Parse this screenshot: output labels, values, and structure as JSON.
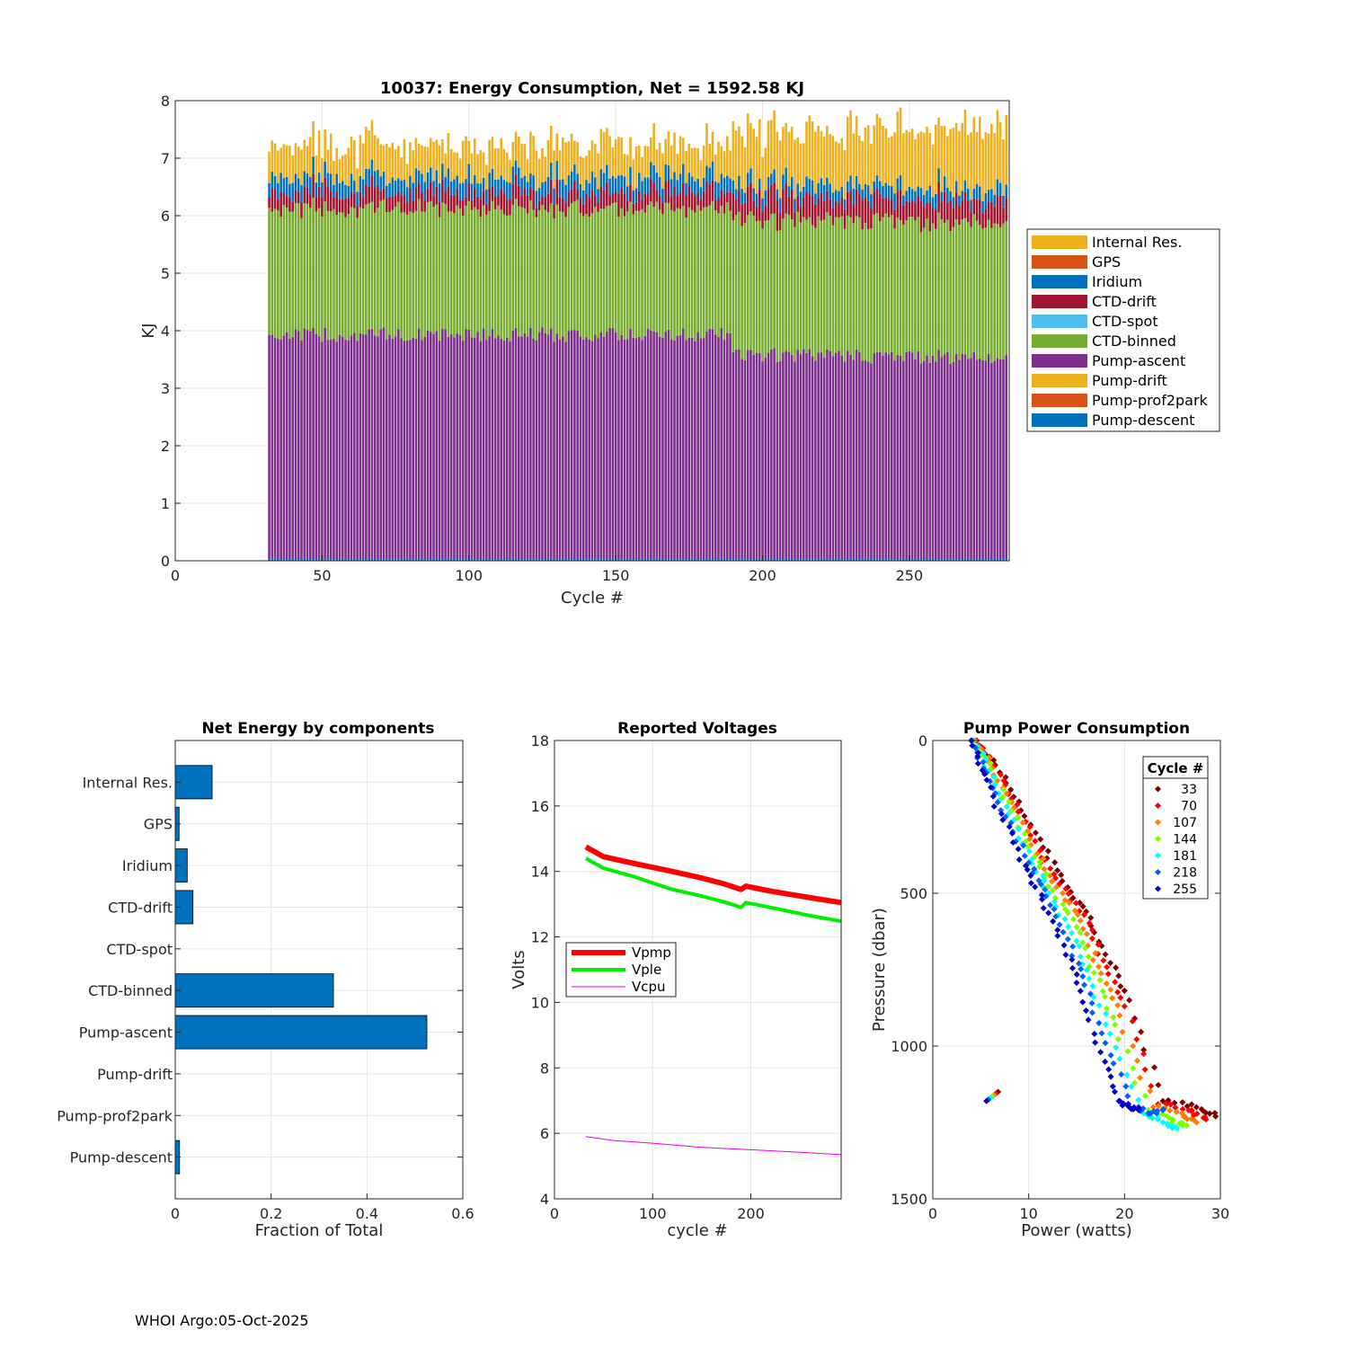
{
  "footer": "WHOI Argo:05-Oct-2025",
  "chart_data": [
    {
      "type": "bar",
      "stacked": true,
      "title": "10037: Energy Consumption,  Net = 1592.58 KJ",
      "xlabel": "Cycle #",
      "ylabel": "KJ",
      "xlim": [
        0,
        284
      ],
      "ylim": [
        0,
        8
      ],
      "xticks": [
        0,
        50,
        100,
        150,
        200,
        250
      ],
      "yticks": [
        0,
        1,
        2,
        3,
        4,
        5,
        6,
        7,
        8
      ],
      "grid": true,
      "legend_position": "outside-right",
      "cycle_range": [
        32,
        283
      ],
      "series": [
        {
          "name": "Internal Res.",
          "color": "#EDB120",
          "typical": 0.7
        },
        {
          "name": "GPS",
          "color": "#D95319",
          "typical": 0.02
        },
        {
          "name": "Iridium",
          "color": "#0072BD",
          "typical": 0.2
        },
        {
          "name": "CTD-drift",
          "color": "#A2142F",
          "typical": 0.3
        },
        {
          "name": "CTD-spot",
          "color": "#4DBEEE",
          "typical": 0.0
        },
        {
          "name": "CTD-binned",
          "color": "#77AC30",
          "typical": 2.2
        },
        {
          "name": "Pump-ascent",
          "color": "#7E2F8E",
          "typical": 3.8
        },
        {
          "name": "Pump-drift",
          "color": "#EDB120",
          "typical": 0.0
        },
        {
          "name": "Pump-prof2park",
          "color": "#D95319",
          "typical": 0.0
        },
        {
          "name": "Pump-descent",
          "color": "#0072BD",
          "typical": 0.05
        }
      ],
      "segments": [
        {
          "from": 32,
          "to": 189,
          "Pump-ascent": 3.9,
          "CTD-binned": 2.2,
          "CTD-drift": 0.3,
          "Iridium": 0.25,
          "Internal Res.": 0.5
        },
        {
          "from": 190,
          "to": 283,
          "Pump-ascent": 3.55,
          "CTD-binned": 2.35,
          "CTD-drift": 0.4,
          "Iridium": 0.2,
          "Internal Res.": 0.8
        }
      ]
    },
    {
      "type": "barh",
      "title": "Net Energy by components",
      "xlabel": "Fraction of Total",
      "xlim": [
        0,
        0.6
      ],
      "xticks": [
        0,
        0.2,
        0.4,
        0.6
      ],
      "xticklabels": [
        "0",
        "0.2",
        "0.4",
        "0.6"
      ],
      "categories": [
        "Internal Res.",
        "GPS",
        "Iridium",
        "CTD-drift",
        "CTD-spot",
        "CTD-binned",
        "Pump-ascent",
        "Pump-drift",
        "Pump-prof2park",
        "Pump-descent"
      ],
      "values": [
        0.077,
        0.008,
        0.025,
        0.037,
        0.0,
        0.33,
        0.525,
        0.0,
        0.0,
        0.009
      ],
      "color": "#0072BD"
    },
    {
      "type": "line",
      "title": "Reported Voltages",
      "xlabel": "cycle #",
      "ylabel": "Volts",
      "xlim": [
        0,
        292
      ],
      "ylim": [
        4,
        18
      ],
      "xticks": [
        0,
        100,
        200
      ],
      "yticks": [
        4,
        6,
        8,
        10,
        12,
        14,
        16,
        18
      ],
      "legend_position": "middle-left",
      "series": [
        {
          "name": "Vpmp",
          "color": "#FF0000",
          "x": [
            32,
            50,
            80,
            120,
            150,
            175,
            190,
            195,
            220,
            260,
            292
          ],
          "values": [
            14.75,
            14.45,
            14.25,
            14.0,
            13.8,
            13.6,
            13.45,
            13.55,
            13.4,
            13.2,
            13.05
          ]
        },
        {
          "name": "Vple",
          "color": "#00EE00",
          "x": [
            32,
            50,
            80,
            120,
            150,
            175,
            190,
            195,
            220,
            260,
            292
          ],
          "values": [
            14.4,
            14.1,
            13.85,
            13.45,
            13.25,
            13.05,
            12.9,
            13.05,
            12.9,
            12.65,
            12.48
          ]
        },
        {
          "name": "Vcpu",
          "color": "#E600E6",
          "x": [
            32,
            60,
            100,
            150,
            200,
            250,
            292
          ],
          "values": [
            5.9,
            5.78,
            5.7,
            5.57,
            5.5,
            5.42,
            5.35
          ]
        }
      ]
    },
    {
      "type": "scatter",
      "title": "Pump Power Consumption",
      "xlabel": "Power (watts)",
      "ylabel": "Pressure (dbar)",
      "xlim": [
        0,
        30
      ],
      "ylim": [
        0,
        1500
      ],
      "y_reversed": true,
      "xticks": [
        0,
        10,
        20,
        30
      ],
      "yticks": [
        0,
        500,
        1000,
        1500
      ],
      "legend_title": "Cycle #",
      "legend_position": "top-right",
      "series": [
        {
          "name": "33",
          "color": "#800000",
          "x": [
            4.5,
            6.5,
            9,
            11.5,
            13.5,
            16,
            18,
            20.5,
            24,
            27.5,
            29.5,
            6.8
          ],
          "values": [
            0,
            80,
            200,
            350,
            460,
            560,
            700,
            850,
            1180,
            1200,
            1230,
            1150
          ]
        },
        {
          "name": "70",
          "color": "#FF0000",
          "x": [
            4.6,
            6.4,
            8.8,
            11.2,
            13.2,
            15.8,
            17.8,
            20,
            23.5,
            27,
            28.5,
            6.6
          ],
          "values": [
            0,
            85,
            210,
            360,
            470,
            570,
            720,
            870,
            1190,
            1210,
            1240,
            1155
          ]
        },
        {
          "name": "107",
          "color": "#FF8000",
          "x": [
            4.4,
            6.2,
            8.5,
            10.9,
            12.9,
            15.4,
            17.3,
            19.5,
            23,
            26,
            27.5,
            6.4
          ],
          "values": [
            0,
            90,
            220,
            370,
            480,
            590,
            740,
            900,
            1200,
            1220,
            1250,
            1160
          ]
        },
        {
          "name": "144",
          "color": "#80FF00",
          "x": [
            4.3,
            6,
            8.2,
            10.6,
            12.5,
            15,
            16.8,
            19,
            22.5,
            25,
            26.5,
            6.2
          ],
          "values": [
            0,
            95,
            230,
            380,
            490,
            610,
            760,
            930,
            1210,
            1240,
            1260,
            1165
          ]
        },
        {
          "name": "181",
          "color": "#00FFFF",
          "x": [
            4.2,
            5.8,
            7.9,
            10.3,
            12.1,
            14.5,
            16.3,
            18.5,
            22,
            24,
            25.5,
            6
          ],
          "values": [
            0,
            100,
            240,
            390,
            500,
            630,
            780,
            960,
            1220,
            1250,
            1270,
            1170
          ]
        },
        {
          "name": "218",
          "color": "#0060FF",
          "x": [
            4.1,
            5.6,
            7.6,
            10,
            11.8,
            14.1,
            15.8,
            18,
            21,
            22.5,
            24,
            5.8
          ],
          "values": [
            0,
            105,
            250,
            400,
            510,
            650,
            800,
            990,
            1200,
            1220,
            1210,
            1175
          ]
        },
        {
          "name": "255",
          "color": "#0000C8",
          "x": [
            4,
            5.4,
            7.3,
            9.7,
            11.4,
            13.7,
            15.4,
            17.5,
            19.5,
            20.5,
            21.5,
            5.6
          ],
          "values": [
            0,
            110,
            260,
            410,
            520,
            670,
            820,
            1020,
            1180,
            1200,
            1210,
            1180
          ]
        }
      ]
    }
  ]
}
